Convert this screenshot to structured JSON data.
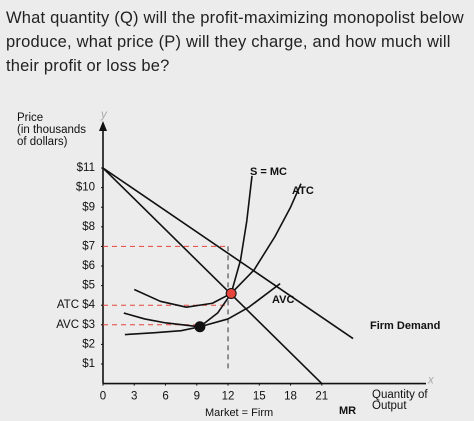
{
  "question": "What quantity (Q) will the profit-maximizing monopolist below produce, what price (P) will they charge, and how much will their profit or loss be?",
  "chart_data": {
    "type": "line",
    "ylabel": [
      "Price",
      "(in thousands",
      "of dollars)"
    ],
    "xlabel": [
      "Quantity of",
      "Output"
    ],
    "note": "Market = Firm",
    "axis_letters": [
      "y",
      "x"
    ],
    "xlim": [
      0,
      31
    ],
    "ylim": [
      0,
      13.4
    ],
    "xticks": [
      0,
      3,
      6,
      9,
      12,
      15,
      18,
      21
    ],
    "yticks": [
      {
        "value": 11,
        "label": "$11"
      },
      {
        "value": 10,
        "label": "$10"
      },
      {
        "value": 9,
        "label": "$9"
      },
      {
        "value": 8,
        "label": "$8"
      },
      {
        "value": 7,
        "label": "$7"
      },
      {
        "value": 6,
        "label": "$6"
      },
      {
        "value": 5,
        "label": "$5"
      },
      {
        "value": 4,
        "label": "ATC $4"
      },
      {
        "value": 3,
        "label": "AVC $3"
      },
      {
        "value": 2,
        "label": "$2"
      },
      {
        "value": 1,
        "label": "$1"
      }
    ],
    "series": [
      {
        "name": "S = MC",
        "color": "#111111",
        "x": [
          2.1,
          5,
          7.5,
          9.3,
          11,
          12.3,
          13.2,
          13.8,
          14.3
        ],
        "values": [
          2.5,
          2.6,
          2.7,
          2.9,
          3.6,
          4.6,
          6.3,
          8.3,
          10.6
        ]
      },
      {
        "name": "ATC",
        "color": "#111111",
        "x": [
          3,
          5.5,
          8,
          10.5,
          12.3,
          14.5,
          16.5,
          18,
          19
        ],
        "values": [
          4.8,
          4.2,
          3.9,
          4.1,
          4.6,
          5.8,
          7.5,
          9,
          10.2
        ]
      },
      {
        "name": "AVC",
        "color": "#111111",
        "x": [
          2,
          4,
          6,
          9.3,
          12,
          14,
          17
        ],
        "values": [
          3.6,
          3.3,
          3.1,
          2.9,
          3.3,
          3.9,
          5.1
        ]
      },
      {
        "name": "Firm Demand",
        "color": "#111111",
        "x": [
          0,
          24
        ],
        "values": [
          11,
          2.3
        ]
      },
      {
        "name": "MR",
        "color": "#111111",
        "x": [
          0,
          21
        ],
        "values": [
          11,
          0
        ]
      }
    ],
    "points": [
      {
        "x": 12.3,
        "y": 4.6,
        "color": "#e5453a"
      },
      {
        "x": 9.3,
        "y": 2.9,
        "color": "#111111"
      }
    ],
    "guides": [
      {
        "x": 12,
        "y": 7
      },
      {
        "x": 12,
        "y": 4
      },
      {
        "x": 9.3,
        "y": 3
      }
    ],
    "guide_color": "#e5453a"
  }
}
